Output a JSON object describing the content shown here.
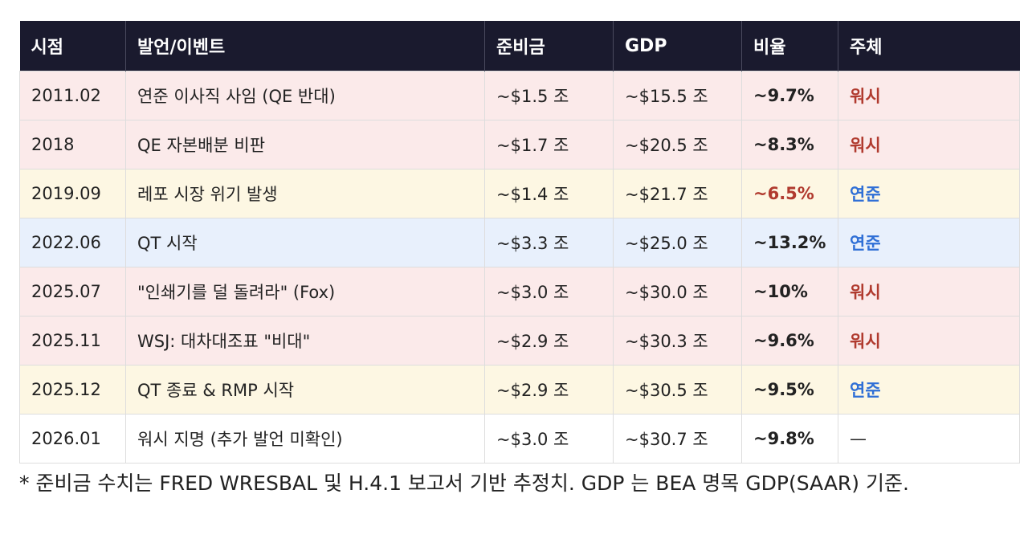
{
  "table": {
    "headers": [
      "시점",
      "발언/이벤트",
      "준비금",
      "GDP",
      "비율",
      "주체"
    ],
    "rows": [
      {
        "time": "2011.02",
        "event": "연준 이사직 사임 (QE 반대)",
        "reserves": "~$1.5 조",
        "gdp": "~$15.5 조",
        "ratio": "~9.7%",
        "actor": "워시",
        "row_color": "#fbeaea",
        "ratio_color": "#222222",
        "actor_color": "#b03a2e"
      },
      {
        "time": "2018",
        "event": "QE 자본배분 비판",
        "reserves": "~$1.7 조",
        "gdp": "~$20.5 조",
        "ratio": "~8.3%",
        "actor": "워시",
        "row_color": "#fbeaea",
        "ratio_color": "#222222",
        "actor_color": "#b03a2e"
      },
      {
        "time": "2019.09",
        "event": "레포 시장 위기 발생",
        "reserves": "~$1.4 조",
        "gdp": "~$21.7 조",
        "ratio": "~6.5%",
        "actor": "연준",
        "row_color": "#fdf7e3",
        "ratio_color": "#b03a2e",
        "actor_color": "#2f6fd6"
      },
      {
        "time": "2022.06",
        "event": "QT 시작",
        "reserves": "~$3.3 조",
        "gdp": "~$25.0 조",
        "ratio": "~13.2%",
        "actor": "연준",
        "row_color": "#e8f0fc",
        "ratio_color": "#222222",
        "actor_color": "#2f6fd6"
      },
      {
        "time": "2025.07",
        "event": "\"인쇄기를 덜 돌려라\" (Fox)",
        "reserves": "~$3.0 조",
        "gdp": "~$30.0 조",
        "ratio": "~10%",
        "actor": "워시",
        "row_color": "#fbeaea",
        "ratio_color": "#222222",
        "actor_color": "#b03a2e"
      },
      {
        "time": "2025.11",
        "event": "WSJ: 대차대조표 \"비대\"",
        "reserves": "~$2.9 조",
        "gdp": "~$30.3 조",
        "ratio": "~9.6%",
        "actor": "워시",
        "row_color": "#fbeaea",
        "ratio_color": "#222222",
        "actor_color": "#b03a2e"
      },
      {
        "time": "2025.12",
        "event": "QT 종료 & RMP 시작",
        "reserves": "~$2.9 조",
        "gdp": "~$30.5 조",
        "ratio": "~9.5%",
        "actor": "연준",
        "row_color": "#fdf7e3",
        "ratio_color": "#222222",
        "actor_color": "#2f6fd6"
      },
      {
        "time": "2026.01",
        "event": "워시 지명 (추가 발언 미확인)",
        "reserves": "~$3.0 조",
        "gdp": "~$30.7 조",
        "ratio": "~9.8%",
        "actor": "—",
        "row_color": "#ffffff",
        "ratio_color": "#222222",
        "actor_color": "#222222"
      }
    ]
  },
  "footnote": "* 준비금 수치는 FRED WRESBAL 및 H.4.1 보고서 기반 추정치. GDP 는 BEA 명목 GDP(SAAR) 기준."
}
